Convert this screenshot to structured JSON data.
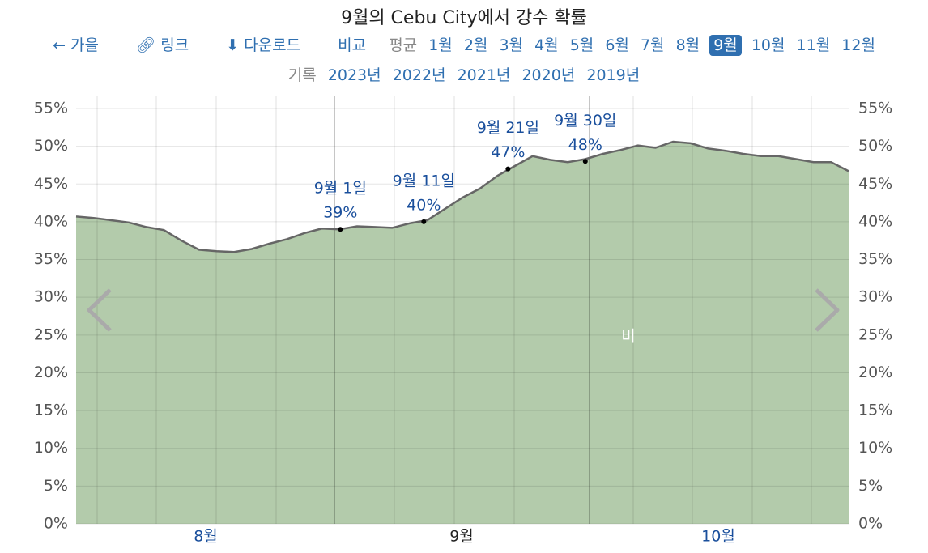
{
  "header": {
    "title": "9월의 Cebu City에서 강수 확률"
  },
  "nav": {
    "season": "가을",
    "link": "링크",
    "download": "다운로드",
    "compare": "비교",
    "average": "평균",
    "months": [
      "1월",
      "2월",
      "3월",
      "4월",
      "5월",
      "6월",
      "7월",
      "8월",
      "9월",
      "10월",
      "11월",
      "12월"
    ],
    "selected": 8
  },
  "history": {
    "label": "기록",
    "years": [
      "2023년",
      "2022년",
      "2021년",
      "2020년",
      "2019년"
    ]
  },
  "chart_data": {
    "type": "area",
    "month_labels": [
      "8월",
      "9월",
      "10월"
    ],
    "series": [
      {
        "name": "비",
        "color": "#b3cbab",
        "line_color": "#666666",
        "values": [
          40.7,
          40.5,
          40.2,
          39.9,
          39.3,
          38.9,
          37.5,
          36.3,
          36.1,
          36.0,
          36.4,
          37.1,
          37.7,
          38.5,
          39.1,
          39.0,
          39.4,
          39.3,
          39.2,
          39.8,
          40.2,
          41.7,
          43.2,
          44.4,
          46.1,
          47.4,
          48.7,
          48.2,
          47.9,
          48.3,
          49.0,
          49.5,
          50.1,
          49.8,
          50.6,
          50.4,
          49.7,
          49.4,
          49.0,
          48.7,
          48.7,
          48.3,
          47.9,
          47.9,
          46.7
        ]
      }
    ],
    "annotations": [
      {
        "date": "9월 1일",
        "value": 39,
        "label": "39%"
      },
      {
        "date": "9월 11일",
        "value": 40,
        "label": "40%"
      },
      {
        "date": "9월 21일",
        "value": 47,
        "label": "47%"
      },
      {
        "date": "9월 30일",
        "value": 48,
        "label": "48%"
      }
    ],
    "ylim": [
      0,
      55
    ],
    "yticks": [
      {
        "value": 0,
        "label": "0%"
      },
      {
        "value": 5,
        "label": "5%"
      },
      {
        "value": 10,
        "label": "10%"
      },
      {
        "value": 15,
        "label": "15%"
      },
      {
        "value": 20,
        "label": "20%"
      },
      {
        "value": 25,
        "label": "25%"
      },
      {
        "value": 30,
        "label": "30%"
      },
      {
        "value": 35,
        "label": "35%"
      },
      {
        "value": 40,
        "label": "40%"
      },
      {
        "value": 45,
        "label": "45%"
      },
      {
        "value": 50,
        "label": "50%"
      },
      {
        "value": 55,
        "label": "55%"
      }
    ],
    "grid": true
  }
}
